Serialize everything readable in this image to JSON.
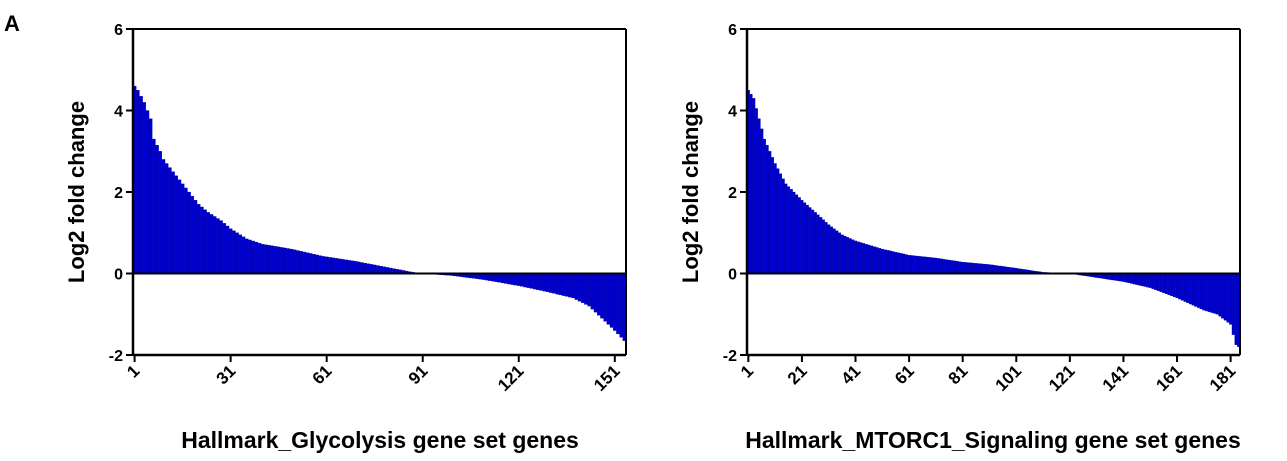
{
  "panel_label": "A",
  "chart_data": [
    {
      "type": "bar",
      "title": "",
      "xlabel": "Hallmark_Glycolysis gene set genes",
      "ylabel": "Log2 fold change",
      "ylim": [
        -2,
        6
      ],
      "yticks": [
        "-2",
        "0",
        "2",
        "4",
        "6"
      ],
      "xticks": [
        "1",
        "31",
        "61",
        "91",
        "121",
        "151"
      ],
      "n_genes": 154,
      "bar_color": "#0000cc",
      "grid": false,
      "sorted": "descending",
      "profile_points": [
        [
          1,
          4.6
        ],
        [
          2,
          4.5
        ],
        [
          4,
          4.2
        ],
        [
          6,
          3.8
        ],
        [
          7,
          3.3
        ],
        [
          9,
          3.0
        ],
        [
          10,
          2.8
        ],
        [
          14,
          2.4
        ],
        [
          18,
          2.0
        ],
        [
          21,
          1.7
        ],
        [
          24,
          1.5
        ],
        [
          28,
          1.3
        ],
        [
          31,
          1.1
        ],
        [
          36,
          0.85
        ],
        [
          41,
          0.72
        ],
        [
          50,
          0.6
        ],
        [
          60,
          0.42
        ],
        [
          70,
          0.3
        ],
        [
          80,
          0.15
        ],
        [
          88,
          0.03
        ],
        [
          91,
          0.0
        ],
        [
          100,
          -0.05
        ],
        [
          110,
          -0.15
        ],
        [
          121,
          -0.3
        ],
        [
          130,
          -0.45
        ],
        [
          138,
          -0.6
        ],
        [
          143,
          -0.8
        ],
        [
          147,
          -1.1
        ],
        [
          151,
          -1.4
        ],
        [
          154,
          -1.65
        ]
      ]
    },
    {
      "type": "bar",
      "title": "",
      "xlabel": "Hallmark_MTORC1_Signaling gene set genes",
      "ylabel": "Log2 fold change",
      "ylim": [
        -2,
        6
      ],
      "yticks": [
        "-2",
        "0",
        "2",
        "4",
        "6"
      ],
      "xticks": [
        "1",
        "21",
        "41",
        "61",
        "81",
        "101",
        "121",
        "141",
        "161",
        "181"
      ],
      "n_genes": 184,
      "bar_color": "#0000cc",
      "grid": false,
      "sorted": "descending",
      "profile_points": [
        [
          1,
          4.5
        ],
        [
          3,
          4.3
        ],
        [
          5,
          3.8
        ],
        [
          7,
          3.3
        ],
        [
          9,
          3.0
        ],
        [
          11,
          2.7
        ],
        [
          15,
          2.2
        ],
        [
          21,
          1.8
        ],
        [
          26,
          1.5
        ],
        [
          31,
          1.2
        ],
        [
          36,
          0.95
        ],
        [
          41,
          0.8
        ],
        [
          51,
          0.6
        ],
        [
          61,
          0.45
        ],
        [
          71,
          0.38
        ],
        [
          81,
          0.28
        ],
        [
          91,
          0.22
        ],
        [
          101,
          0.13
        ],
        [
          111,
          0.03
        ],
        [
          121,
          0.0
        ],
        [
          131,
          -0.1
        ],
        [
          141,
          -0.2
        ],
        [
          151,
          -0.35
        ],
        [
          161,
          -0.6
        ],
        [
          171,
          -0.9
        ],
        [
          176,
          -1.0
        ],
        [
          181,
          -1.25
        ],
        [
          183,
          -1.75
        ],
        [
          184,
          -1.8
        ]
      ]
    }
  ]
}
